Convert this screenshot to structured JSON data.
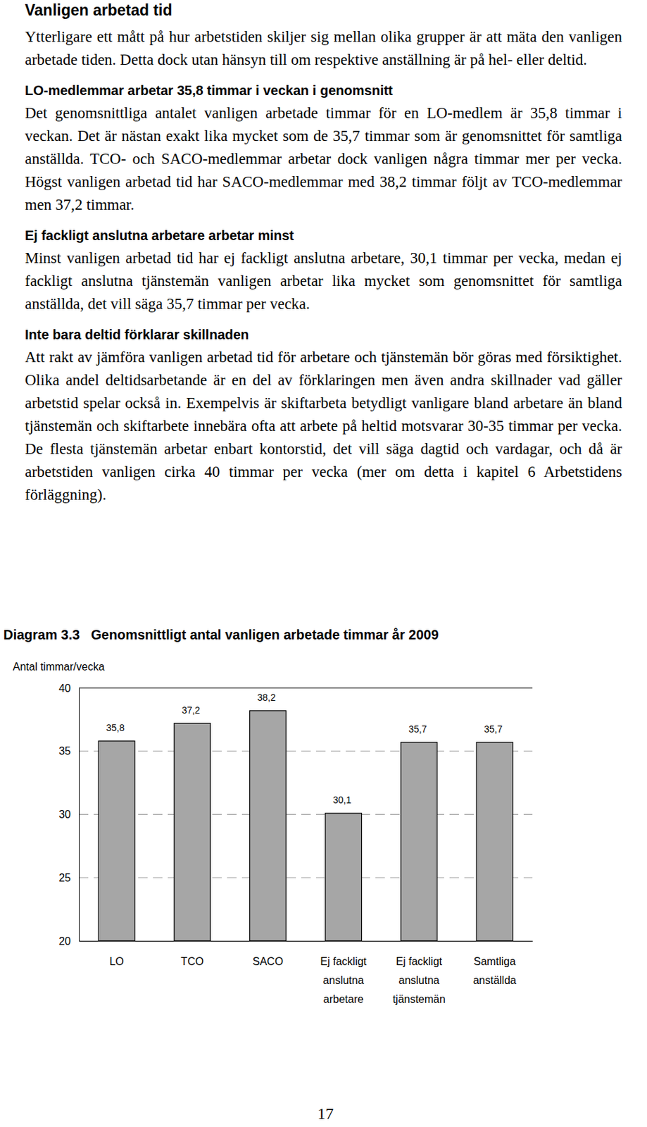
{
  "document": {
    "heading": "Vanligen arbetad tid",
    "intro": "Ytterligare ett mått på hur arbetstiden skiljer sig mellan olika grupper är att mäta den vanligen arbetade tiden. Detta dock utan hänsyn till om respektive anställning är på hel- eller deltid.",
    "sections": [
      {
        "heading": "LO-medlemmar arbetar 35,8 timmar i veckan i genomsnitt",
        "text": "Det genomsnittliga antalet vanligen arbetade timmar för en LO-medlem är 35,8 timmar i veckan. Det är nästan exakt lika mycket som de 35,7 timmar som är genomsnittet för samtliga anställda. TCO- och SACO-medlemmar arbetar dock vanligen några timmar mer per vecka. Högst vanligen arbetad tid har SACO-medlemmar med 38,2 timmar följt av TCO-medlemmar men 37,2 timmar."
      },
      {
        "heading": "Ej fackligt anslutna arbetare arbetar minst",
        "text": "Minst vanligen arbetad tid har ej fackligt anslutna arbetare, 30,1 timmar per vecka, medan ej fackligt anslutna tjänstemän vanligen arbetar lika mycket som genomsnittet för samtliga anställda, det vill säga 35,7 timmar per vecka."
      },
      {
        "heading": "Inte bara deltid förklarar skillnaden",
        "text": "Att rakt av jämföra vanligen arbetad tid för arbetare och tjänstemän bör göras med försiktighet. Olika andel deltidsarbetande är en del av förklaringen men även andra skillnader vad gäller arbetstid spelar också in. Exempelvis är skiftarbeta betydligt vanligare bland arbetare än bland tjänstemän och skiftarbete innebära ofta att arbete på heltid motsvarar 30-35 timmar per vecka. De flesta tjänstemän arbetar enbart kontorstid, det vill säga dagtid och vardagar, och då är arbetstiden vanligen cirka 40 timmar per vecka (mer om detta i kapitel 6 Arbetstidens förläggning)."
      }
    ],
    "page_number": 17
  },
  "chart_data": {
    "type": "bar",
    "title": "Diagram 3.3   Genomsnittligt antal vanligen arbetade timmar år 2009",
    "y_label": "Antal timmar/vecka",
    "categories": [
      "LO",
      "TCO",
      "SACO",
      "Ej fackligt anslutna arbetare",
      "Ej fackligt anslutna tjänstemän",
      "Samtliga anställda"
    ],
    "values": [
      35.8,
      37.2,
      38.2,
      30.1,
      35.7,
      35.7
    ],
    "value_labels": [
      "35,8",
      "37,2",
      "38,2",
      "30,1",
      "35,7",
      "35,7"
    ],
    "color": "#a6a6a6",
    "ylim": [
      20,
      40
    ],
    "yticks": [
      20,
      25,
      30,
      35,
      40
    ],
    "grid": true,
    "data_labels": true
  }
}
